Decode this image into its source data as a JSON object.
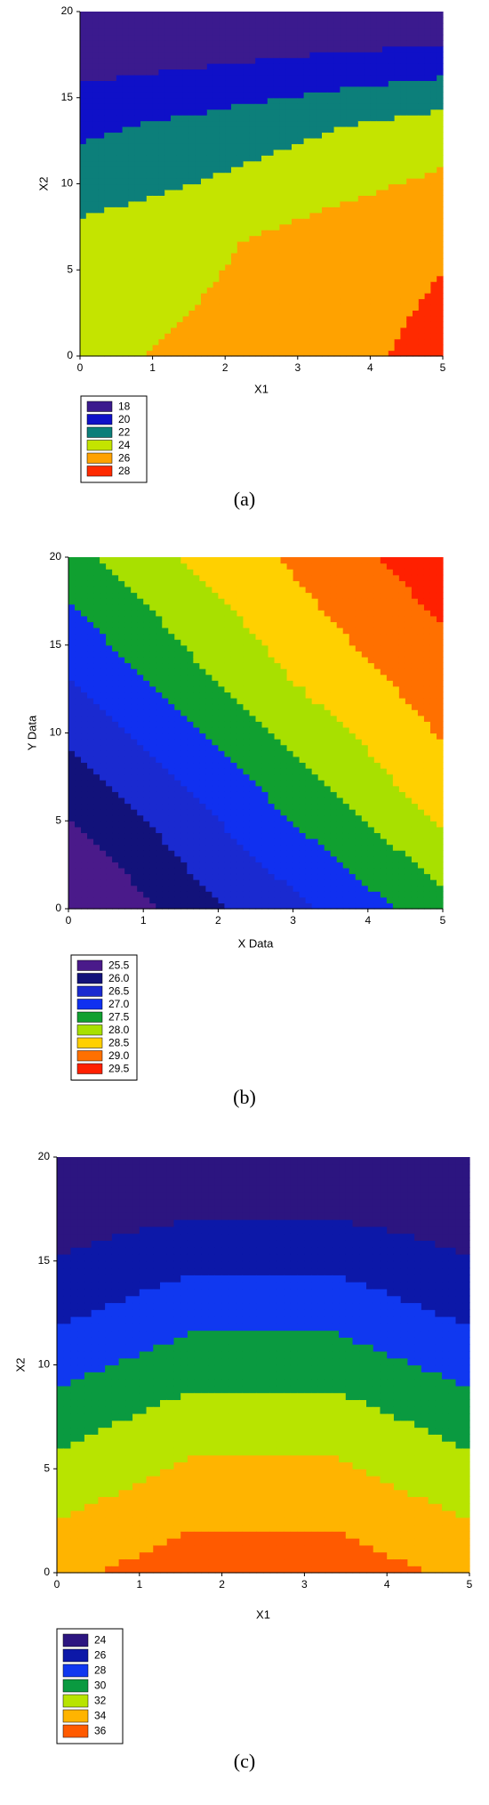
{
  "chart_data": [
    {
      "type": "contour",
      "x_label": "X1",
      "y_label": "X2",
      "caption": "(a)",
      "x": [
        0,
        1.67,
        3.33,
        5
      ],
      "y": [
        0,
        6.67,
        13.33,
        20
      ],
      "z": [
        [
          25.6,
          26.4,
          27.3,
          28.6
        ],
        [
          24.6,
          25.6,
          26.8,
          27.8
        ],
        [
          21.6,
          22.6,
          23.8,
          25.0
        ],
        [
          17.4,
          17.6,
          17.8,
          18.0
        ]
      ],
      "levels": [
        18,
        20,
        22,
        24,
        26,
        28
      ],
      "level_colors": [
        "#3b1a8e",
        "#0f10c8",
        "#0c7f7a",
        "#c4e400",
        "#ffa200",
        "#ff2a00"
      ],
      "xlim": [
        0,
        5
      ],
      "ylim": [
        0,
        20
      ],
      "xticks": [
        0,
        1,
        2,
        3,
        4,
        5
      ],
      "yticks": [
        0,
        5,
        10,
        15,
        20
      ]
    },
    {
      "type": "contour",
      "x_label": "X Data",
      "y_label": "Y Data",
      "caption": "(b)",
      "x": [
        0,
        1.67,
        3.33,
        5
      ],
      "y": [
        0,
        6.67,
        13.33,
        20
      ],
      "z": [
        [
          25.3,
          26.3,
          27.0,
          27.8
        ],
        [
          26.2,
          27.0,
          27.9,
          28.8
        ],
        [
          27.0,
          27.9,
          28.7,
          29.3
        ],
        [
          27.8,
          28.6,
          29.2,
          29.8
        ]
      ],
      "levels": [
        25.5,
        {
          "value": 26,
          "label": "26.0"
        },
        26.5,
        {
          "value": 27,
          "label": "27.0"
        },
        27.5,
        {
          "value": 28,
          "label": "28.0"
        },
        28.5,
        {
          "value": 29,
          "label": "29.0"
        },
        29.5
      ],
      "level_colors": [
        "#4a1a8a",
        "#12127a",
        "#1a2ad0",
        "#1030f0",
        "#10a030",
        "#a8e000",
        "#ffd000",
        "#ff7000",
        "#ff2000"
      ],
      "xlim": [
        0,
        5
      ],
      "ylim": [
        0,
        20
      ],
      "xticks": [
        0,
        1,
        2,
        3,
        4,
        5
      ],
      "yticks": [
        0,
        5,
        10,
        15,
        20
      ]
    },
    {
      "type": "contour",
      "x_label": "X1",
      "y_label": "X2",
      "caption": "(c)",
      "x": [
        0,
        1.67,
        3.33,
        5
      ],
      "y": [
        0,
        6.67,
        13.33,
        20
      ],
      "z": [
        [
          35.5,
          37.2,
          37.2,
          35.5
        ],
        [
          31.5,
          33.5,
          33.5,
          31.5
        ],
        [
          27.0,
          28.8,
          28.8,
          27.0
        ],
        [
          23.5,
          23.8,
          23.8,
          23.5
        ]
      ],
      "levels": [
        24,
        26,
        28,
        30,
        32,
        34,
        36
      ],
      "level_colors": [
        "#2c1580",
        "#0c18a8",
        "#1038f0",
        "#0a9a40",
        "#b8e400",
        "#ffb400",
        "#ff5a00"
      ],
      "xlim": [
        0,
        5
      ],
      "ylim": [
        0,
        20
      ],
      "xticks": [
        0,
        1,
        2,
        3,
        4,
        5
      ],
      "yticks": [
        0,
        5,
        10,
        15,
        20
      ]
    }
  ]
}
